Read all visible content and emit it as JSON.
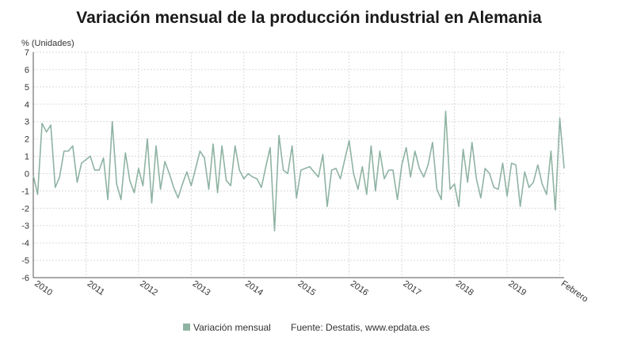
{
  "chart_data": {
    "type": "line",
    "title": "Variación mensual de la producción industrial en Alemania",
    "ylabel": "% (Unidades)",
    "ylim": [
      -6,
      7
    ],
    "yticks": [
      7,
      6,
      5,
      4,
      3,
      2,
      1,
      0,
      -1,
      -2,
      -3,
      -4,
      -5,
      -6
    ],
    "x_start": "2010-01",
    "x_end": "2020-02",
    "xtick_labels": [
      "2010",
      "2011",
      "2012",
      "2013",
      "2014",
      "2015",
      "2016",
      "2017",
      "2018",
      "2019",
      "Febrero"
    ],
    "grid": true,
    "legend_position": "bottom",
    "series": [
      {
        "name": "Variación mensual",
        "color": "#8fb3a3",
        "values": [
          -0.1,
          -1.2,
          2.9,
          2.4,
          2.8,
          -0.8,
          -0.2,
          1.3,
          1.3,
          1.6,
          -0.5,
          0.6,
          0.8,
          1.0,
          0.2,
          0.2,
          0.9,
          -1.5,
          3.0,
          -0.6,
          -1.5,
          1.2,
          -0.4,
          -1.1,
          0.3,
          -0.7,
          2.0,
          -1.7,
          1.6,
          -0.9,
          0.7,
          0.0,
          -0.8,
          -1.4,
          -0.6,
          0.1,
          -0.7,
          0.3,
          1.3,
          0.9,
          -0.9,
          1.7,
          -1.1,
          1.6,
          -0.4,
          -0.7,
          1.6,
          0.2,
          -0.3,
          0.0,
          -0.2,
          -0.3,
          -0.8,
          0.4,
          1.5,
          -3.3,
          2.2,
          0.2,
          0.0,
          1.6,
          -1.4,
          0.2,
          0.3,
          0.4,
          0.1,
          -0.2,
          1.1,
          -1.9,
          0.2,
          0.3,
          -0.3,
          0.8,
          1.9,
          0.0,
          -0.9,
          0.4,
          -1.2,
          1.6,
          -1.0,
          1.3,
          -0.3,
          0.2,
          0.2,
          -1.5,
          0.5,
          1.5,
          -0.2,
          1.3,
          0.3,
          -0.2,
          0.5,
          1.8,
          -0.9,
          -1.5,
          3.6,
          -0.9,
          -0.6,
          -1.9,
          1.4,
          -0.5,
          1.8,
          -0.3,
          -1.4,
          0.3,
          0.0,
          -0.8,
          -0.9,
          0.6,
          -1.3,
          0.6,
          0.5,
          -1.9,
          0.1,
          -0.8,
          -0.5,
          0.5,
          -0.6,
          -1.2,
          1.3,
          -2.1,
          3.2,
          0.3
        ]
      }
    ],
    "source_label": "Fuente: Destatis, www.epdata.es"
  }
}
